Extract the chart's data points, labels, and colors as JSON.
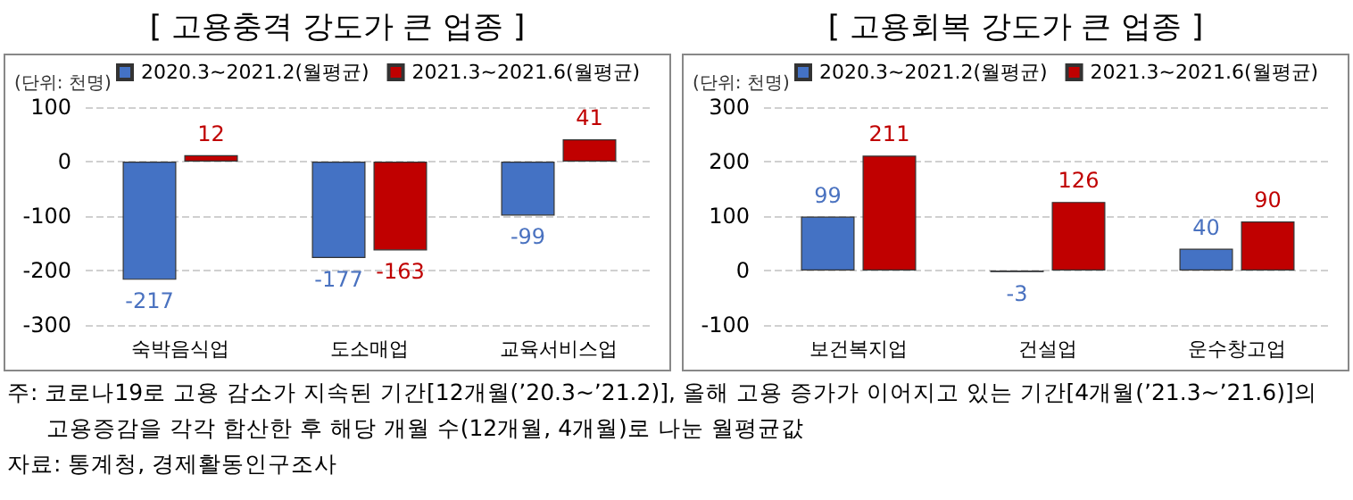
{
  "chart_data": [
    {
      "type": "bar",
      "title": "[ 고용충격 강도가 큰 업종 ]",
      "ylabel": "(단위: 천명)",
      "categories": [
        "숙박음식업",
        "도소매업",
        "교육서비스업"
      ],
      "series": [
        {
          "name": "2020.3~2021.2(월평균)",
          "color": "#4472c4",
          "values": [
            -217,
            -177,
            -99
          ]
        },
        {
          "name": "2021.3~2021.6(월평균)",
          "color": "#c00000",
          "values": [
            12,
            -163,
            41
          ]
        }
      ],
      "ylim": [
        -300,
        100
      ],
      "yticks": [
        -300,
        -200,
        -100,
        0,
        100
      ],
      "grid": "y",
      "legend": "top",
      "data_labels": true,
      "annotations": [
        "주: 코로나19로 고용 감소가 지속된 기간[12개월(’20.3~’21.2)], 올해 고용 증가가 이어지고 있는 기간[4개월(’21.3~’21.6)]의 고용증감을 각각 합산한 후 해당 개월 수(12개월, 4개월)로 나눈 월평균값",
        "자료: 통계청, 경제활동인구조사"
      ]
    },
    {
      "type": "bar",
      "title": "[ 고용회복 강도가 큰 업종 ]",
      "ylabel": "(단위: 천명)",
      "categories": [
        "보건복지업",
        "건설업",
        "운수창고업"
      ],
      "series": [
        {
          "name": "2020.3~2021.2(월평균)",
          "color": "#4472c4",
          "values": [
            99,
            -3,
            40
          ]
        },
        {
          "name": "2021.3~2021.6(월평균)",
          "color": "#c00000",
          "values": [
            211,
            126,
            90
          ]
        }
      ],
      "ylim": [
        -100,
        300
      ],
      "yticks": [
        -100,
        0,
        100,
        200,
        300
      ],
      "grid": "y",
      "legend": "top",
      "data_labels": true
    }
  ]
}
